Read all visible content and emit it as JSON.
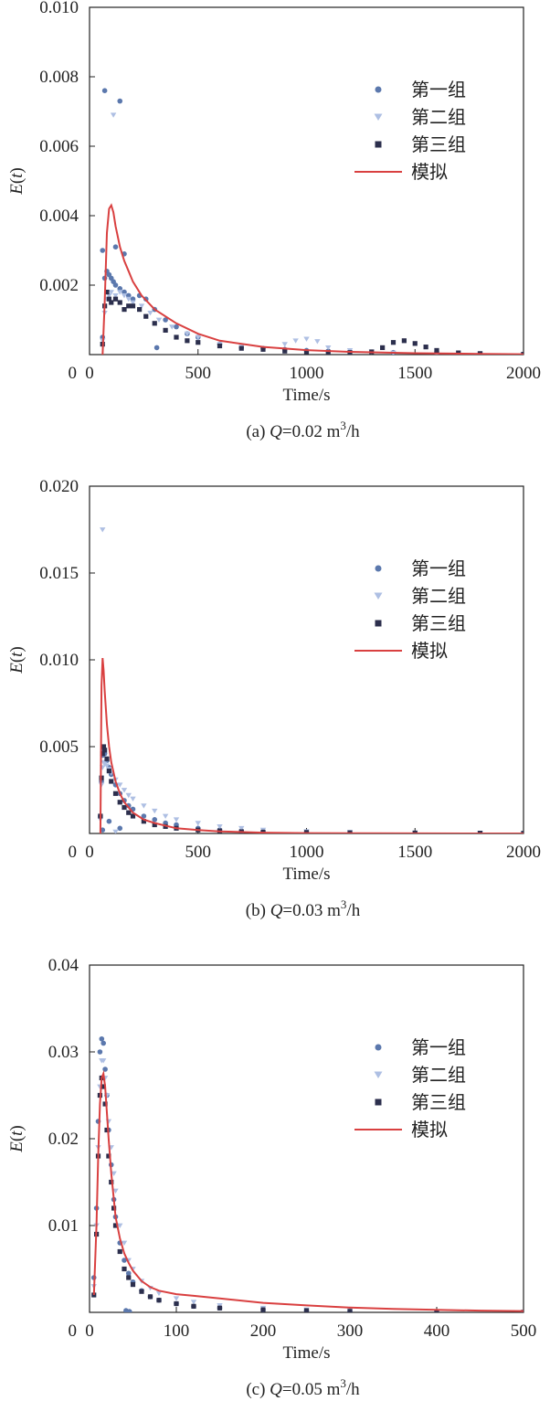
{
  "chart_data": [
    {
      "type": "scatter",
      "caption": {
        "prefix": "(a) ",
        "var": "Q",
        "value": "=0.02 m",
        "sup": "3",
        "unit": "/h"
      },
      "xlabel": "Time/s",
      "ylabel": "E(t)",
      "xlim": [
        0,
        2000
      ],
      "ylim": [
        0,
        0.01
      ],
      "xticks": [
        "0",
        "500",
        "1000",
        "1500",
        "2000"
      ],
      "xtick_values": [
        0,
        500,
        1000,
        1500,
        2000
      ],
      "yticks": [
        "0.002",
        "0.004",
        "0.006",
        "0.008",
        "0.010"
      ],
      "ytick_values": [
        0.002,
        0.004,
        0.006,
        0.008,
        0.01
      ],
      "legend_position": "top-right",
      "series": [
        {
          "name": "第一组",
          "marker": "circle",
          "color": "#5b78ad",
          "x": [
            60,
            70,
            80,
            90,
            100,
            110,
            120,
            140,
            160,
            180,
            200,
            230,
            260,
            300,
            350,
            400,
            450,
            500,
            600,
            700,
            800,
            900,
            1000,
            1100,
            1200,
            1400,
            1600,
            1800,
            2000,
            70,
            140,
            120,
            160,
            310,
            60
          ],
          "y": [
            0.0005,
            0.0022,
            0.0024,
            0.0023,
            0.0022,
            0.0021,
            0.002,
            0.0019,
            0.0018,
            0.0017,
            0.0016,
            0.0017,
            0.0016,
            0.0013,
            0.001,
            0.0008,
            0.0006,
            0.0005,
            0.0003,
            0.0002,
            0.00018,
            0.00015,
            0.00012,
            0.0001,
            8e-05,
            6e-05,
            4e-05,
            2e-05,
            1e-05,
            0.0076,
            0.0073,
            0.0031,
            0.0029,
            0.0002,
            0.003
          ]
        },
        {
          "name": "第二组",
          "marker": "triangle",
          "color": "#aebfe3",
          "x": [
            60,
            70,
            80,
            90,
            100,
            120,
            140,
            160,
            180,
            200,
            240,
            280,
            320,
            380,
            450,
            500,
            600,
            700,
            800,
            900,
            950,
            1000,
            1050,
            1100,
            1200,
            1300,
            1400,
            1600,
            1800,
            2000,
            110
          ],
          "y": [
            0.0004,
            0.0012,
            0.0016,
            0.0017,
            0.0018,
            0.0017,
            0.0018,
            0.0017,
            0.0016,
            0.0015,
            0.0014,
            0.0012,
            0.001,
            0.0008,
            0.0006,
            0.0005,
            0.0003,
            0.00022,
            0.00015,
            0.0003,
            0.0004,
            0.00045,
            0.00038,
            0.0002,
            0.00012,
            8e-05,
            5e-05,
            3e-05,
            2e-05,
            1e-05,
            0.0069
          ]
        },
        {
          "name": "第三组",
          "marker": "square",
          "color": "#2c2f4d",
          "x": [
            60,
            70,
            80,
            90,
            100,
            120,
            140,
            160,
            180,
            200,
            230,
            260,
            300,
            350,
            400,
            450,
            500,
            600,
            700,
            800,
            900,
            1000,
            1100,
            1200,
            1300,
            1350,
            1400,
            1450,
            1500,
            1550,
            1600,
            1700,
            1800,
            2000
          ],
          "y": [
            0.0003,
            0.0014,
            0.0018,
            0.0016,
            0.0015,
            0.0016,
            0.0015,
            0.0013,
            0.0014,
            0.0014,
            0.0013,
            0.0011,
            0.0009,
            0.0007,
            0.0005,
            0.0004,
            0.00035,
            0.00025,
            0.00018,
            0.00015,
            0.0001,
            8e-05,
            7e-05,
            6e-05,
            8e-05,
            0.0002,
            0.00035,
            0.0004,
            0.00032,
            0.00022,
            0.00012,
            5e-05,
            3e-05,
            1e-05
          ]
        },
        {
          "name": "模拟",
          "marker": "line",
          "color": "#d94040",
          "x": [
            60,
            70,
            80,
            90,
            100,
            110,
            120,
            140,
            160,
            180,
            200,
            240,
            300,
            400,
            500,
            600,
            800,
            1000,
            1200,
            1500,
            1800,
            2000
          ],
          "y": [
            0,
            0.0015,
            0.0035,
            0.0042,
            0.0043,
            0.0041,
            0.0037,
            0.0031,
            0.0027,
            0.0024,
            0.0021,
            0.0017,
            0.0013,
            0.0009,
            0.0006,
            0.0004,
            0.00022,
            0.00013,
            8e-05,
            4e-05,
            2e-05,
            1e-05
          ]
        }
      ]
    },
    {
      "type": "scatter",
      "caption": {
        "prefix": "(b) ",
        "var": "Q",
        "value": "=0.03 m",
        "sup": "3",
        "unit": "/h"
      },
      "xlabel": "Time/s",
      "ylabel": "E(t)",
      "xlim": [
        0,
        2000
      ],
      "ylim": [
        0,
        0.02
      ],
      "xticks": [
        "0",
        "500",
        "1000",
        "1500",
        "2000"
      ],
      "xtick_values": [
        0,
        500,
        1000,
        1500,
        2000
      ],
      "yticks": [
        "0.005",
        "0.010",
        "0.015",
        "0.020"
      ],
      "ytick_values": [
        0.005,
        0.01,
        0.015,
        0.02
      ],
      "legend_position": "top-right",
      "series": [
        {
          "name": "第一组",
          "marker": "circle",
          "color": "#5b78ad",
          "x": [
            50,
            55,
            60,
            65,
            70,
            80,
            90,
            100,
            120,
            140,
            160,
            180,
            200,
            250,
            300,
            350,
            400,
            500,
            600,
            700,
            800,
            1000,
            1200,
            1500,
            1800,
            2000,
            60,
            90,
            140
          ],
          "y": [
            0.001,
            0.003,
            0.0045,
            0.0048,
            0.0046,
            0.0042,
            0.0038,
            0.0034,
            0.0028,
            0.0023,
            0.0019,
            0.0016,
            0.0014,
            0.001,
            0.0008,
            0.0006,
            0.0005,
            0.0003,
            0.0002,
            0.00015,
            0.0001,
            6e-05,
            4e-05,
            2e-05,
            1e-05,
            1e-05,
            0.0002,
            0.0007,
            0.0003
          ]
        },
        {
          "name": "第二组",
          "marker": "triangle",
          "color": "#aebfe3",
          "x": [
            50,
            55,
            60,
            65,
            70,
            80,
            90,
            100,
            120,
            140,
            160,
            180,
            200,
            250,
            300,
            350,
            400,
            500,
            600,
            700,
            800,
            1000,
            1200,
            1500,
            1800,
            2000,
            60,
            120
          ],
          "y": [
            0.0008,
            0.0028,
            0.0038,
            0.0041,
            0.004,
            0.0039,
            0.0037,
            0.0035,
            0.0031,
            0.0028,
            0.0025,
            0.0022,
            0.002,
            0.0016,
            0.0013,
            0.001,
            0.0008,
            0.0006,
            0.0004,
            0.0003,
            0.0002,
            0.00012,
            8e-05,
            4e-05,
            2e-05,
            1e-05,
            0.0175,
            0.0001
          ]
        },
        {
          "name": "第三组",
          "marker": "square",
          "color": "#2c2f4d",
          "x": [
            50,
            55,
            60,
            65,
            70,
            80,
            90,
            100,
            120,
            140,
            160,
            180,
            200,
            250,
            300,
            350,
            400,
            500,
            600,
            700,
            800,
            1000,
            1200,
            1500,
            1800,
            2000
          ],
          "y": [
            0.001,
            0.0032,
            0.0046,
            0.005,
            0.0048,
            0.0043,
            0.0036,
            0.003,
            0.0023,
            0.0018,
            0.0015,
            0.0012,
            0.001,
            0.0007,
            0.0005,
            0.0004,
            0.0003,
            0.0002,
            0.00015,
            0.0001,
            8e-05,
            6e-05,
            4e-05,
            3e-05,
            2e-05,
            1e-05
          ]
        },
        {
          "name": "模拟",
          "marker": "line",
          "color": "#d94040",
          "x": [
            50,
            55,
            60,
            65,
            70,
            80,
            90,
            100,
            120,
            140,
            160,
            180,
            200,
            250,
            300,
            400,
            500,
            600,
            800,
            1000,
            1500,
            2000
          ],
          "y": [
            0,
            0.0085,
            0.0101,
            0.0094,
            0.0082,
            0.0063,
            0.005,
            0.0041,
            0.003,
            0.0023,
            0.0018,
            0.0015,
            0.0012,
            0.0008,
            0.0006,
            0.0003,
            0.0002,
            0.00012,
            5e-05,
            2e-05,
            5e-06,
            1e-06
          ]
        }
      ]
    },
    {
      "type": "scatter",
      "caption": {
        "prefix": "(c) ",
        "var": "Q",
        "value": "=0.05 m",
        "sup": "3",
        "unit": "/h"
      },
      "xlabel": "Time/s",
      "ylabel": "E(t)",
      "xlim": [
        0,
        500
      ],
      "ylim": [
        0,
        0.04
      ],
      "xticks": [
        "0",
        "100",
        "200",
        "300",
        "400",
        "500"
      ],
      "xtick_values": [
        0,
        100,
        200,
        300,
        400,
        500
      ],
      "yticks": [
        "0.01",
        "0.02",
        "0.03",
        "0.04"
      ],
      "ytick_values": [
        0.01,
        0.02,
        0.03,
        0.04
      ],
      "legend_position": "top-right",
      "series": [
        {
          "name": "第一组",
          "marker": "circle",
          "color": "#5b78ad",
          "x": [
            5,
            8,
            10,
            12,
            14,
            16,
            18,
            20,
            22,
            25,
            28,
            30,
            35,
            40,
            45,
            50,
            60,
            70,
            80,
            100,
            120,
            150,
            200,
            250,
            300,
            400,
            500,
            42,
            46
          ],
          "y": [
            0.004,
            0.012,
            0.022,
            0.03,
            0.0315,
            0.031,
            0.028,
            0.025,
            0.021,
            0.017,
            0.013,
            0.011,
            0.008,
            0.006,
            0.0045,
            0.0035,
            0.0025,
            0.0018,
            0.0014,
            0.001,
            0.0007,
            0.0005,
            0.0003,
            0.0002,
            0.00012,
            5e-05,
            2e-05,
            0.0002,
            0.0001
          ]
        },
        {
          "name": "第二组",
          "marker": "triangle",
          "color": "#aebfe3",
          "x": [
            5,
            8,
            10,
            12,
            14,
            16,
            18,
            20,
            22,
            25,
            28,
            30,
            35,
            40,
            45,
            50,
            60,
            70,
            80,
            100,
            120,
            150,
            200,
            250,
            300,
            400,
            500
          ],
          "y": [
            0.003,
            0.01,
            0.019,
            0.026,
            0.029,
            0.029,
            0.027,
            0.025,
            0.022,
            0.019,
            0.016,
            0.014,
            0.01,
            0.008,
            0.006,
            0.005,
            0.0036,
            0.0028,
            0.0022,
            0.0016,
            0.0012,
            0.0008,
            0.0005,
            0.0003,
            0.0002,
            8e-05,
            3e-05
          ]
        },
        {
          "name": "第三组",
          "marker": "square",
          "color": "#2c2f4d",
          "x": [
            5,
            8,
            10,
            12,
            14,
            16,
            18,
            20,
            22,
            25,
            28,
            30,
            35,
            40,
            45,
            50,
            60,
            70,
            80,
            100,
            120,
            150,
            200,
            250,
            300,
            400,
            500
          ],
          "y": [
            0.002,
            0.009,
            0.018,
            0.025,
            0.027,
            0.026,
            0.024,
            0.021,
            0.018,
            0.015,
            0.012,
            0.01,
            0.007,
            0.005,
            0.004,
            0.0032,
            0.0024,
            0.0018,
            0.0014,
            0.001,
            0.0007,
            0.0005,
            0.0003,
            0.0002,
            0.00012,
            5e-05,
            2e-05
          ]
        },
        {
          "name": "模拟",
          "marker": "line",
          "color": "#d94040",
          "x": [
            5,
            8,
            10,
            12,
            14,
            16,
            18,
            20,
            22,
            25,
            30,
            35,
            40,
            45,
            50,
            60,
            70,
            80,
            100,
            120,
            150,
            200,
            250,
            300,
            350,
            400,
            450,
            500
          ],
          "y": [
            0.002,
            0.01,
            0.018,
            0.024,
            0.027,
            0.0275,
            0.026,
            0.023,
            0.02,
            0.016,
            0.011,
            0.0085,
            0.0068,
            0.0057,
            0.0048,
            0.0036,
            0.0029,
            0.0025,
            0.0021,
            0.0019,
            0.0016,
            0.0011,
            0.0008,
            0.00055,
            0.0004,
            0.00028,
            0.0002,
            0.00015
          ]
        }
      ]
    }
  ]
}
